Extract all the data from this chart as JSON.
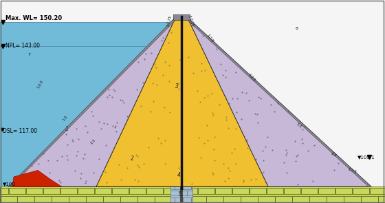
{
  "bg_color": "#f5f5f5",
  "water_color": "#6ab8d8",
  "fill_color": "#c8b8d8",
  "core_color": "#f0c030",
  "foundation_color": "#c8d85a",
  "cutoff_color": "#a8c0d0",
  "red_zone_color": "#cc2200",
  "riprap_color": "#888898",
  "border_color": "#222222",
  "dark_border": "#111111",
  "annotations": {
    "max_wl": "Max. WL= 150.20",
    "npl": "NPL= 143.00",
    "dsl": "DSL= 117.00",
    "el100": "▼100",
    "el109": "▼109.1"
  }
}
